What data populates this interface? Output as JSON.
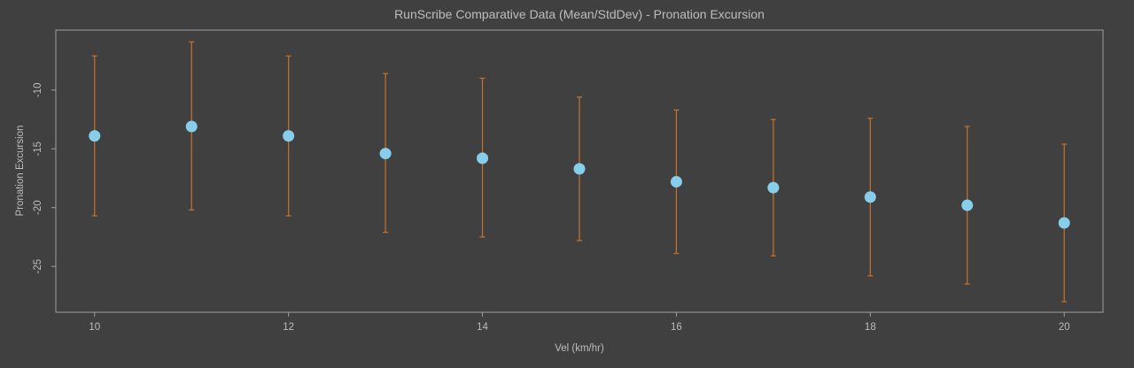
{
  "chart_data": {
    "type": "scatter",
    "title": "RunScribe Comparative Data (Mean/StdDev) - Pronation Excursion",
    "xlabel": "Vel (km/hr)",
    "ylabel": "Pronation Excursion",
    "xlim": [
      9.6,
      20.4
    ],
    "ylim": [
      -28.9,
      -4.9
    ],
    "xticks": [
      10,
      12,
      14,
      16,
      18,
      20
    ],
    "yticks": [
      -10,
      -15,
      -20,
      -25
    ],
    "grid": false,
    "colors": {
      "background": "#404040",
      "frame": "#9e9e9e",
      "point": "#87ceeb",
      "error_bar": "#c8732b",
      "text": "#bdbdbd"
    },
    "series": [
      {
        "x": [
          10,
          11,
          12,
          13,
          14,
          15,
          16,
          17,
          18,
          19,
          20
        ],
        "mean": [
          -13.9,
          -13.1,
          -13.9,
          -15.4,
          -15.8,
          -16.7,
          -17.8,
          -18.3,
          -19.1,
          -19.8,
          -21.3
        ],
        "upper": [
          -7.1,
          -5.9,
          -7.1,
          -8.6,
          -9.0,
          -10.6,
          -11.7,
          -12.5,
          -12.4,
          -13.1,
          -14.6
        ],
        "lower": [
          -20.7,
          -20.2,
          -20.7,
          -22.1,
          -22.5,
          -22.8,
          -23.9,
          -24.1,
          -25.8,
          -26.5,
          -28.0
        ]
      }
    ]
  }
}
